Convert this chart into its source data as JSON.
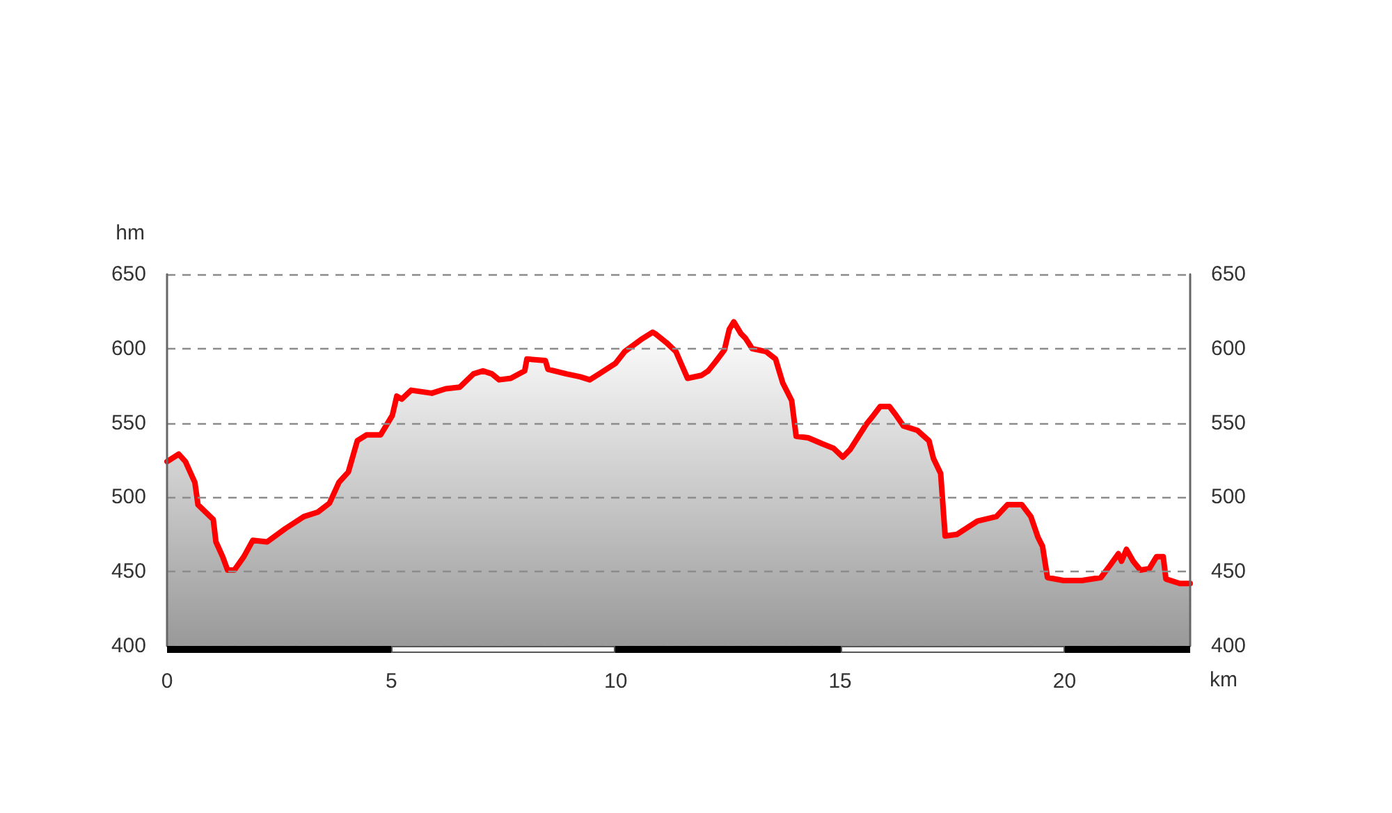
{
  "chart_data": {
    "type": "area",
    "xlabel": "km",
    "ylabel": "hm",
    "x": [
      0,
      0.26,
      0.41,
      0.62,
      0.69,
      1.03,
      1.09,
      1.24,
      1.35,
      1.5,
      1.71,
      1.91,
      2.23,
      2.64,
      3.05,
      3.36,
      3.62,
      3.83,
      4.04,
      4.24,
      4.45,
      4.76,
      5.02,
      5.12,
      5.23,
      5.44,
      5.9,
      6.21,
      6.52,
      6.83,
      7.04,
      7.24,
      7.4,
      7.66,
      7.97,
      8.02,
      8.43,
      8.49,
      8.9,
      9.21,
      9.42,
      9.63,
      9.99,
      10.2,
      10.56,
      10.82,
      10.88,
      11.13,
      11.34,
      11.44,
      11.6,
      11.91,
      12.06,
      12.22,
      12.42,
      12.53,
      12.63,
      12.79,
      12.89,
      13.04,
      13.35,
      13.56,
      13.72,
      13.92,
      14.02,
      14.29,
      14.6,
      14.85,
      15.06,
      15.22,
      15.58,
      15.74,
      15.89,
      16.1,
      16.25,
      16.41,
      16.72,
      16.98,
      17.08,
      17.24,
      17.34,
      17.6,
      18.06,
      18.48,
      18.73,
      19.05,
      19.25,
      19.41,
      19.51,
      19.62,
      19.98,
      20.39,
      20.81,
      21.01,
      21.2,
      21.27,
      21.38,
      21.53,
      21.69,
      21.89,
      22.05,
      22.2,
      22.26,
      22.57,
      22.8
    ],
    "series": [
      {
        "color": "#ff0000",
        "values": [
          524,
          529,
          524,
          510,
          495,
          485,
          470,
          460,
          451,
          451,
          460,
          471,
          470,
          479,
          487,
          490,
          496,
          510,
          517,
          538,
          542,
          542,
          555,
          568,
          566,
          572,
          570,
          573,
          574,
          583,
          585,
          583,
          579,
          580,
          585,
          593,
          592,
          586,
          583,
          581,
          579,
          583,
          590,
          598,
          606,
          611,
          610,
          604,
          598,
          591,
          580,
          582,
          585,
          591,
          599,
          613,
          618,
          610,
          607,
          600,
          598,
          593,
          577,
          565,
          541,
          540,
          536,
          533,
          527,
          532,
          549,
          555,
          561,
          561,
          555,
          548,
          545,
          538,
          526,
          516,
          474,
          475,
          484,
          487,
          495,
          495,
          487,
          473,
          467,
          446,
          444,
          444,
          446,
          454,
          462,
          457,
          465,
          457,
          451,
          452,
          460,
          460,
          445,
          442,
          442
        ]
      }
    ],
    "xlim": [
      0,
      22.8
    ],
    "xticks": [
      0,
      5,
      10,
      15,
      20
    ],
    "ylim": [
      400,
      650
    ],
    "yticks": [
      400,
      450,
      500,
      550,
      600,
      650
    ],
    "y2lim": [
      400,
      650
    ],
    "y2ticks": [
      400,
      450,
      500,
      550,
      600,
      650
    ],
    "grid": "y"
  }
}
